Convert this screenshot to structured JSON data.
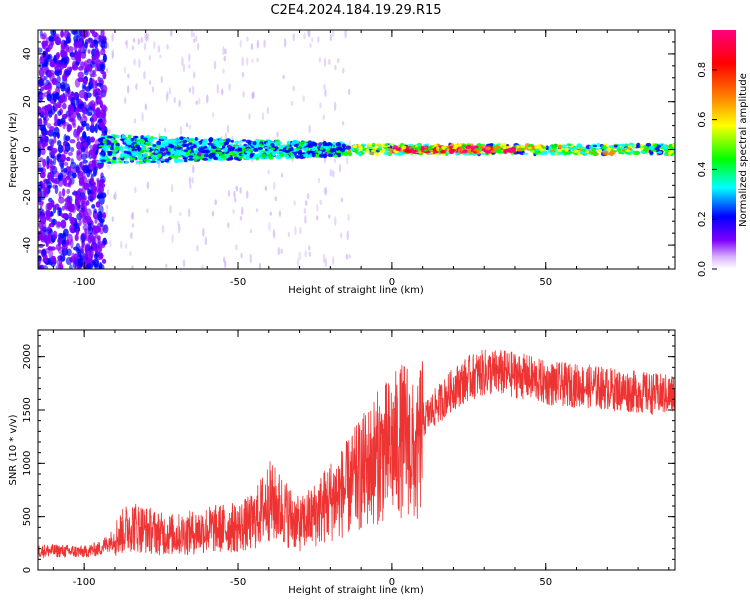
{
  "title": "C2E4.2024.184.19.29.R15",
  "chart_data": [
    {
      "type": "heatmap",
      "xlabel": "Height of straight line (km)",
      "ylabel": "Frequency (Hz)",
      "xlim": [
        -115,
        92
      ],
      "ylim": [
        -50,
        50
      ],
      "xticks": [
        -100,
        -50,
        0,
        50
      ],
      "yticks": [
        -40,
        -20,
        0,
        20,
        40
      ],
      "colorbar": {
        "label": "Normalized spectral amplitude",
        "range": [
          0,
          0.96
        ],
        "ticks": [
          0.0,
          0.2,
          0.4,
          0.6,
          0.8
        ],
        "tick_labels": [
          "0.0",
          "0.2",
          "0.4",
          "0.6",
          "0.8"
        ],
        "colors": [
          "#ffffff",
          "#7f00ff",
          "#0000ff",
          "#00ffff",
          "#00ff00",
          "#ffff00",
          "#ff8000",
          "#ff0000",
          "#ff0080"
        ]
      },
      "features": [
        {
          "x_range": [
            -115,
            -93
          ],
          "freq_range": [
            -50,
            50
          ],
          "amplitude": 0.15
        },
        {
          "x_range": [
            -95,
            -15
          ],
          "freq_center": 0,
          "freq_halfwidth": 5,
          "amplitude": 0.35
        },
        {
          "x_range": [
            -15,
            92
          ],
          "freq_center": 0,
          "freq_halfwidth": 2,
          "amplitude": 0.5
        },
        {
          "x_range": [
            0,
            40
          ],
          "freq_center": 0,
          "freq_halfwidth": 1,
          "amplitude": 0.85
        }
      ]
    },
    {
      "type": "line",
      "xlabel": "Height of straight line (km)",
      "ylabel": "SNR (10 * v/v)",
      "xlim": [
        -115,
        92
      ],
      "ylim": [
        0,
        2250
      ],
      "xticks": [
        -100,
        -50,
        0,
        50
      ],
      "yticks": [
        0,
        500,
        1000,
        1500,
        2000
      ],
      "color": "#ee3333",
      "series": [
        {
          "x": [
            -115,
            -110,
            -105,
            -100,
            -95,
            -90,
            -85,
            -80,
            -75,
            -70,
            -65,
            -60,
            -55,
            -50,
            -45,
            -40,
            -35,
            -30,
            -25,
            -20,
            -15,
            -10,
            -5,
            0,
            5,
            8,
            10,
            15,
            20,
            25,
            30,
            35,
            40,
            45,
            50,
            55,
            60,
            65,
            70,
            75,
            80,
            85,
            92
          ],
          "values": [
            180,
            180,
            175,
            170,
            200,
            300,
            420,
            380,
            340,
            330,
            350,
            380,
            390,
            400,
            450,
            650,
            550,
            420,
            520,
            650,
            750,
            900,
            1050,
            1150,
            1250,
            1000,
            1400,
            1550,
            1700,
            1800,
            1850,
            1850,
            1830,
            1800,
            1750,
            1740,
            1730,
            1720,
            1700,
            1680,
            1670,
            1650,
            1640
          ]
        }
      ]
    }
  ]
}
